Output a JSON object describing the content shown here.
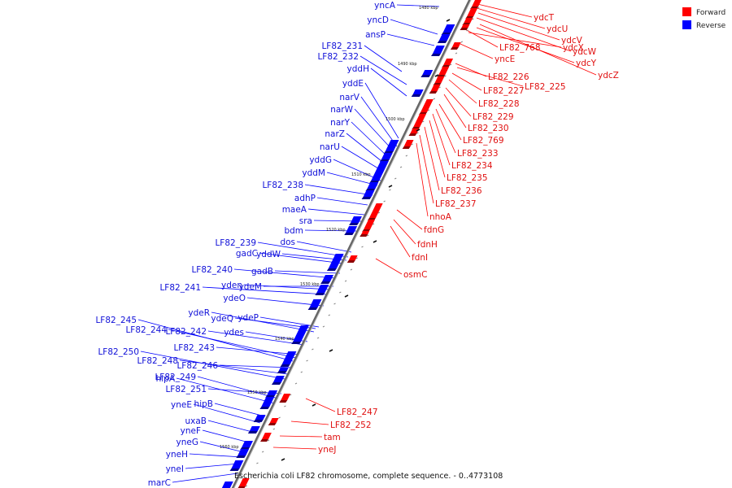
{
  "legend": [
    {
      "label": "Forward",
      "color": "#ff0000"
    },
    {
      "label": "Reverse",
      "color": "#0000ff"
    }
  ],
  "caption": "Escherichia coli LF82 chromosome, complete sequence. - 0..4773108",
  "ruler_marks": [
    "1480 kbp",
    "1490 kbp",
    "1500 kbp",
    "1510 kbp",
    "1520 kbp",
    "1530 kbp",
    "1540 kbp",
    "1550 kbp",
    "1560 kbp"
  ],
  "forward_labels": [
    "ydcT",
    "ydcU",
    "ydcV",
    "ydcW",
    "ydcY",
    "ydcZ",
    "LF82_768",
    "ydcX",
    "yncE",
    "LF82_226",
    "LF82_225",
    "LF82_227",
    "LF82_228",
    "LF82_229",
    "LF82_230",
    "LF82_769",
    "LF82_233",
    "LF82_234",
    "LF82_235",
    "LF82_236",
    "LF82_237",
    "nhoA",
    "fdnG",
    "fdnH",
    "fdnI",
    "osmC",
    "LF82_247",
    "LF82_252",
    "tam",
    "yneJ"
  ],
  "reverse_labels": [
    "yncA",
    "yncD",
    "ansP",
    "LF82_231",
    "LF82_232",
    "yddH",
    "yddE",
    "narV",
    "narW",
    "narY",
    "narZ",
    "narU",
    "yddG",
    "yddM",
    "LF82_238",
    "adhP",
    "maeA",
    "sra",
    "bdm",
    "LF82_239",
    "dos",
    "gadC",
    "yddW",
    "LF82_240",
    "gadB",
    "LF82_241",
    "yden",
    "ydeM",
    "ydeO",
    "ydeR",
    "ydeQ",
    "ydeP",
    "LF82_245",
    "LF82_244",
    "LF82_242",
    "ydes",
    "LF82_243",
    "LF82_250",
    "LF82_248",
    "LF82_246",
    "hipA",
    "LF82_249",
    "LF82_251",
    "yneE",
    "hipB",
    "uxaB",
    "yneF",
    "yneG",
    "yneH",
    "yneI",
    "marC"
  ]
}
